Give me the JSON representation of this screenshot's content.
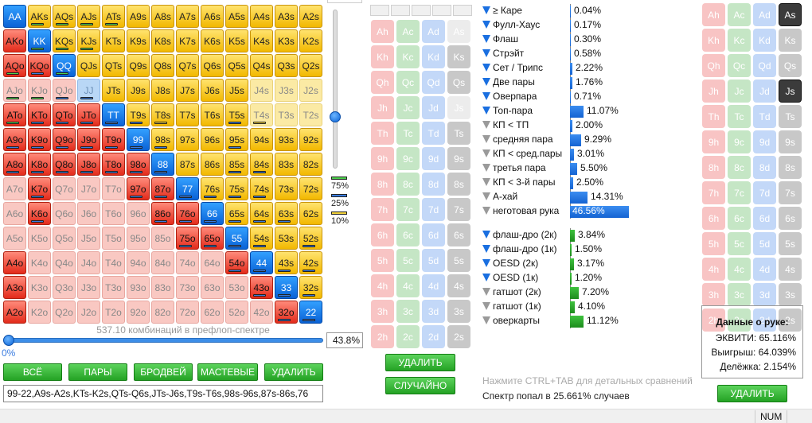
{
  "colors": {
    "accent_green": "#24a224",
    "bar_blue": "#1463d2",
    "pair_blue": "#0a62d6",
    "off_red": "#e32b1b",
    "suited_gold": "#f2b800"
  },
  "grid": [
    [
      "AA",
      "AKs",
      "AQs",
      "AJs",
      "ATs",
      "A9s",
      "A8s",
      "A7s",
      "A6s",
      "A5s",
      "A4s",
      "A3s",
      "A2s"
    ],
    [
      "AKo",
      "KK",
      "KQs",
      "KJs",
      "KTs",
      "K9s",
      "K8s",
      "K7s",
      "K6s",
      "K5s",
      "K4s",
      "K3s",
      "K2s"
    ],
    [
      "AQo",
      "KQo",
      "QQ",
      "QJs",
      "QTs",
      "Q9s",
      "Q8s",
      "Q7s",
      "Q6s",
      "Q5s",
      "Q4s",
      "Q3s",
      "Q2s"
    ],
    [
      "AJo",
      "KJo",
      "QJo",
      "JJ",
      "JTs",
      "J9s",
      "J8s",
      "J7s",
      "J6s",
      "J5s",
      "J4s",
      "J3s",
      "J2s"
    ],
    [
      "ATo",
      "KTo",
      "QTo",
      "JTo",
      "TT",
      "T9s",
      "T8s",
      "T7s",
      "T6s",
      "T5s",
      "T4s",
      "T3s",
      "T2s"
    ],
    [
      "A9o",
      "K9o",
      "Q9o",
      "J9o",
      "T9o",
      "99",
      "98s",
      "97s",
      "96s",
      "95s",
      "94s",
      "93s",
      "92s"
    ],
    [
      "A8o",
      "K8o",
      "Q8o",
      "J8o",
      "T8o",
      "98o",
      "88",
      "87s",
      "86s",
      "85s",
      "84s",
      "83s",
      "82s"
    ],
    [
      "A7o",
      "K7o",
      "Q7o",
      "J7o",
      "T7o",
      "97o",
      "87o",
      "77",
      "76s",
      "75s",
      "74s",
      "73s",
      "72s"
    ],
    [
      "A6o",
      "K6o",
      "Q6o",
      "J6o",
      "T6o",
      "96o",
      "86o",
      "76o",
      "66",
      "65s",
      "64s",
      "63s",
      "62s"
    ],
    [
      "A5o",
      "K5o",
      "Q5o",
      "J5o",
      "T5o",
      "95o",
      "85o",
      "75o",
      "65o",
      "55",
      "54s",
      "53s",
      "52s"
    ],
    [
      "A4o",
      "K4o",
      "Q4o",
      "J4o",
      "T4o",
      "94o",
      "84o",
      "74o",
      "64o",
      "54o",
      "44",
      "43s",
      "42s"
    ],
    [
      "A3o",
      "K3o",
      "Q3o",
      "J3o",
      "T3o",
      "93o",
      "83o",
      "73o",
      "63o",
      "53o",
      "43o",
      "33",
      "32s"
    ],
    [
      "A2o",
      "K2o",
      "Q2o",
      "J2o",
      "T2o",
      "92o",
      "82o",
      "72o",
      "62o",
      "52o",
      "42o",
      "32o",
      "22"
    ]
  ],
  "cell_states": [
    "PGGGGGGGGGGGG",
    "RPGGGGGGGGGGG",
    "RRPGGGGGGGGGG",
    "LLLBGGGGGGYYY",
    "RRRRPGGGGGYYY",
    "RRRRRPGGGGGGG",
    "RRRRRRPGGGGGG",
    "LRLLLRRPGGGGG",
    "LRLLLLRRPGGGG",
    "LLLLLLLRRPGGG",
    "RLLLLLLLLRPGG",
    "RLLLLLLLLLRPG",
    "RLLLLLLLLLLRP"
  ],
  "cell_markers": {
    "AKs": "g",
    "AQs": "g",
    "AJs": "g",
    "ATs": "g",
    "KK": "g",
    "KQs": "g",
    "KJs": "g",
    "AQo": "g",
    "KQo": "b",
    "QQ": "g",
    "AJo": "g",
    "KJo": "g",
    "QJo": "b",
    "JJ": "b",
    "ATo": "g",
    "KTo": "b",
    "QTo": "b",
    "JTo": "b",
    "TT": "b",
    "T9s": "b",
    "T8s": "y",
    "T5s": "b",
    "T4s": "y",
    "A9o": "b",
    "K9o": "b",
    "Q9o": "b",
    "J9o": "b",
    "T9o": "b",
    "99": "b",
    "98s": "b",
    "95s": "b",
    "A8o": "b",
    "K8o": "b",
    "Q8o": "b",
    "J8o": "b",
    "T8o": "b",
    "98o": "b",
    "88": "b",
    "85s": "b",
    "84s": "b",
    "K7o": "b",
    "97o": "b",
    "87o": "b",
    "77": "b",
    "76s": "b",
    "75s": "b",
    "74s": "b",
    "K6o": "b",
    "86o": "b",
    "76o": "b",
    "66": "b",
    "65s": "b",
    "64s": "b",
    "63s": "b",
    "75o": "b",
    "65o": "b",
    "55": "b",
    "54s": "b",
    "52s": "b",
    "54o": "b",
    "44": "b",
    "43s": "b",
    "42s": "b",
    "43o": "b",
    "33": "b",
    "32s": "b",
    "32o": "b",
    "22": "b"
  },
  "combos_text": "537.10 комбинаций в префлоп-спектре",
  "legend": [
    {
      "color": "#4cd04c",
      "label": "75%"
    },
    {
      "color": "#3a7ce0",
      "label": "25%"
    },
    {
      "color": "#f3d23b",
      "label": "10%"
    }
  ],
  "vertical_slider_value": 0.69,
  "range_percent": "43.8%",
  "range_min_label": "0%",
  "buttons": {
    "all": "ВСЁ",
    "pairs": "ПАРЫ",
    "broadway": "БРОДВЕЙ",
    "suited": "МАСТЕВЫЕ",
    "delete": "УДАЛИТЬ",
    "board_delete": "УДАЛИТЬ",
    "board_random": "СЛУЧАЙНО",
    "dead_delete": "УДАЛИТЬ"
  },
  "range_text": "99-22,A9s-A2s,KTs-K2s,QTs-Q6s,JTs-J6s,T9s-T6s,98s-96s,87s-86s,76",
  "board": {
    "rows": [
      [
        "Ah",
        "Ac",
        "Ad",
        "As"
      ],
      [
        "Kh",
        "Kc",
        "Kd",
        "Ks"
      ],
      [
        "Qh",
        "Qc",
        "Qd",
        "Qs"
      ],
      [
        "Jh",
        "Jc",
        "Jd",
        "Js"
      ],
      [
        "Th",
        "Tc",
        "Td",
        "Ts"
      ],
      [
        "9h",
        "9c",
        "9d",
        "9s"
      ],
      [
        "8h",
        "8c",
        "8d",
        "8s"
      ],
      [
        "7h",
        "7c",
        "7d",
        "7s"
      ],
      [
        "6h",
        "6c",
        "6d",
        "6s"
      ],
      [
        "5h",
        "5c",
        "5d",
        "5s"
      ],
      [
        "4h",
        "4c",
        "4d",
        "4s"
      ],
      [
        "3h",
        "3c",
        "3d",
        "3s"
      ],
      [
        "2h",
        "2c",
        "2d",
        "2s"
      ]
    ],
    "faint": [
      "As",
      "Js"
    ]
  },
  "dead": {
    "rows": [
      [
        "Ah",
        "Ac",
        "Ad",
        "As"
      ],
      [
        "Kh",
        "Kc",
        "Kd",
        "Ks"
      ],
      [
        "Qh",
        "Qc",
        "Qd",
        "Qs"
      ],
      [
        "Jh",
        "Jc",
        "Jd",
        "Js"
      ],
      [
        "Th",
        "Tc",
        "Td",
        "Ts"
      ],
      [
        "9h",
        "9c",
        "9d",
        "9s"
      ],
      [
        "8h",
        "8c",
        "8d",
        "8s"
      ],
      [
        "7h",
        "7c",
        "7d",
        "7s"
      ],
      [
        "6h",
        "6c",
        "6d",
        "6s"
      ],
      [
        "5h",
        "5c",
        "5d",
        "5s"
      ],
      [
        "4h",
        "4c",
        "4d",
        "4s"
      ],
      [
        "3h",
        "3c",
        "3d",
        "3s"
      ],
      [
        "2h",
        "2c",
        "2d",
        "2s"
      ]
    ],
    "dark": [
      "As",
      "Js"
    ]
  },
  "stats_made": [
    {
      "label": "≥ Каре",
      "value": "0.04%",
      "pct": 0.04,
      "icon": "blue"
    },
    {
      "label": "Фулл-Хаус",
      "value": "0.17%",
      "pct": 0.17,
      "icon": "blue"
    },
    {
      "label": "Флаш",
      "value": "0.30%",
      "pct": 0.3,
      "icon": "blue"
    },
    {
      "label": "Стрэйт",
      "value": "0.58%",
      "pct": 0.58,
      "icon": "blue"
    },
    {
      "label": "Сет / Трипс",
      "value": "2.22%",
      "pct": 2.22,
      "icon": "blue"
    },
    {
      "label": "Две пары",
      "value": "1.76%",
      "pct": 1.76,
      "icon": "blue"
    },
    {
      "label": "Оверпара",
      "value": "0.71%",
      "pct": 0.71,
      "icon": "blue"
    },
    {
      "label": "Топ-пара",
      "value": "11.07%",
      "pct": 11.07,
      "icon": "blue"
    },
    {
      "label": "КП < ТП",
      "value": "2.00%",
      "pct": 2.0,
      "icon": "grey"
    },
    {
      "label": "средняя пара",
      "value": "9.29%",
      "pct": 9.29,
      "icon": "grey"
    },
    {
      "label": "КП < сред.пары",
      "value": "3.01%",
      "pct": 3.01,
      "icon": "grey"
    },
    {
      "label": "третья пара",
      "value": "5.50%",
      "pct": 5.5,
      "icon": "grey"
    },
    {
      "label": "КП < 3-й пары",
      "value": "2.50%",
      "pct": 2.5,
      "icon": "grey"
    },
    {
      "label": "А-хай",
      "value": "14.31%",
      "pct": 14.31,
      "icon": "grey"
    },
    {
      "label": "неготовая рука",
      "value": "46.56%",
      "pct": 46.56,
      "icon": "grey"
    }
  ],
  "stats_draws": [
    {
      "label": "флаш-дро (2к)",
      "value": "3.84%",
      "pct": 3.84,
      "icon": "blue"
    },
    {
      "label": "флаш-дро (1к)",
      "value": "1.50%",
      "pct": 1.5,
      "icon": "blue"
    },
    {
      "label": "OESD (2к)",
      "value": "3.17%",
      "pct": 3.17,
      "icon": "blue"
    },
    {
      "label": "OESD (1к)",
      "value": "1.20%",
      "pct": 1.2,
      "icon": "blue"
    },
    {
      "label": "гатшот (2к)",
      "value": "7.20%",
      "pct": 7.2,
      "icon": "grey"
    },
    {
      "label": "гатшот (1к)",
      "value": "4.10%",
      "pct": 4.1,
      "icon": "grey"
    },
    {
      "label": "оверкарты",
      "value": "11.12%",
      "pct": 11.12,
      "icon": "grey"
    }
  ],
  "hint": "Нажмите CTRL+TAB для детальных сравнений",
  "hit_text": "Спектр попал в 25.661% случаев",
  "hand_info": {
    "title": "Данные о руке:",
    "equity": "ЭКВИТИ: 65.116%",
    "win": "Выигрыш: 64.039%",
    "split": "Делёжка: 2.154%"
  },
  "status": {
    "num": "NUM"
  }
}
